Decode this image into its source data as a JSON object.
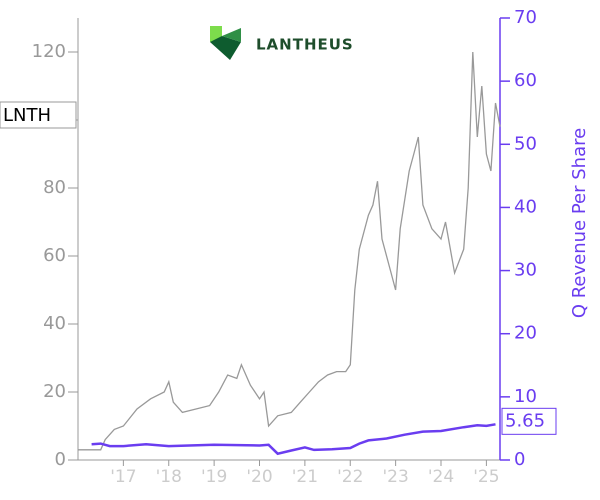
{
  "chart_data": {
    "type": "line",
    "logo": "LANTHEUS",
    "y2label": "Q Revenue Per Share",
    "xlim": [
      2016.0,
      2025.3
    ],
    "xticks": [
      {
        "value": 2017,
        "label": "'17"
      },
      {
        "value": 2018,
        "label": "'18"
      },
      {
        "value": 2019,
        "label": "'19"
      },
      {
        "value": 2020,
        "label": "'20"
      },
      {
        "value": 2021,
        "label": "'21"
      },
      {
        "value": 2022,
        "label": "'22"
      },
      {
        "value": 2023,
        "label": "'23"
      },
      {
        "value": 2024,
        "label": "'24"
      },
      {
        "value": 2025,
        "label": "'25"
      }
    ],
    "ylim": [
      0,
      130
    ],
    "yticks": [
      0,
      20,
      40,
      60,
      80,
      100,
      120
    ],
    "y2lim": [
      0,
      70
    ],
    "y2ticks": [
      0,
      10,
      20,
      30,
      40,
      50,
      60,
      70
    ],
    "series": [
      {
        "name": "LNTH",
        "color": "#999999",
        "x": [
          2016.0,
          2016.5,
          2016.6,
          2016.8,
          2017.0,
          2017.3,
          2017.6,
          2017.9,
          2018.0,
          2018.1,
          2018.3,
          2018.6,
          2018.9,
          2019.1,
          2019.3,
          2019.5,
          2019.6,
          2019.8,
          2020.0,
          2020.1,
          2020.2,
          2020.4,
          2020.7,
          2020.9,
          2021.1,
          2021.3,
          2021.5,
          2021.7,
          2021.9,
          2022.0,
          2022.1,
          2022.2,
          2022.4,
          2022.5,
          2022.6,
          2022.7,
          2022.9,
          2023.0,
          2023.1,
          2023.3,
          2023.4,
          2023.5,
          2023.6,
          2023.8,
          2024.0,
          2024.1,
          2024.3,
          2024.5,
          2024.6,
          2024.7,
          2024.8,
          2024.9,
          2025.0,
          2025.1,
          2025.2,
          2025.3
        ],
        "values": [
          3,
          3,
          6,
          9,
          10,
          15,
          18,
          20,
          23,
          17,
          14,
          15,
          16,
          20,
          25,
          24,
          28,
          22,
          18,
          20,
          10,
          13,
          14,
          17,
          20,
          23,
          25,
          26,
          26,
          28,
          50,
          62,
          72,
          75,
          82,
          65,
          55,
          50,
          68,
          85,
          90,
          95,
          75,
          68,
          65,
          70,
          55,
          62,
          80,
          120,
          95,
          110,
          90,
          85,
          105,
          98
        ]
      },
      {
        "color": "#6a3df0",
        "axis": "y2",
        "x": [
          2016.3,
          2016.5,
          2016.7,
          2017.0,
          2017.5,
          2018.0,
          2019.0,
          2020.0,
          2020.2,
          2020.4,
          2020.7,
          2021.0,
          2021.2,
          2021.6,
          2022.0,
          2022.2,
          2022.4,
          2022.8,
          2023.2,
          2023.6,
          2024.0,
          2024.5,
          2024.8,
          2025.0,
          2025.2
        ],
        "values": [
          2.5,
          2.6,
          2.2,
          2.2,
          2.5,
          2.2,
          2.4,
          2.3,
          2.4,
          1.0,
          1.5,
          2.0,
          1.6,
          1.7,
          1.9,
          2.6,
          3.1,
          3.4,
          4.0,
          4.5,
          4.6,
          5.2,
          5.5,
          5.4,
          5.65
        ]
      }
    ]
  }
}
